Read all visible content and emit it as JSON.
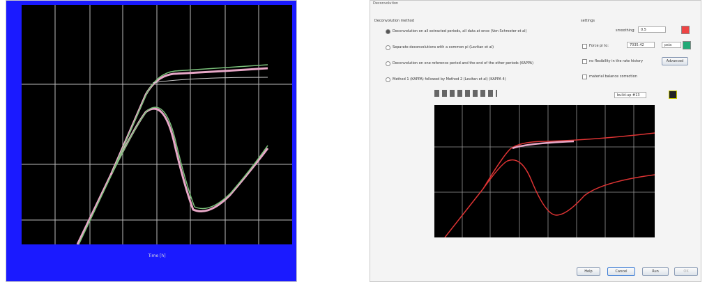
{
  "left_plot": {
    "x_axis_label": "Time [h]"
  },
  "dialog": {
    "title": "Deconvolution",
    "method_heading": "Deconvolution method",
    "methods": [
      "Deconvolution on all extracted periods, all data at once (Von Schroeter et al)",
      "Separate deconvolutions with a common pi (Levitan et al)",
      "Deconvolution on one reference period and the end of the other periods (KAPPA)",
      "Method 1 (KAPPA) followed by Method 2 (Levitan et al) (KAPPA 4)"
    ],
    "settings_heading": "settings",
    "smoothing_label": "smoothing:",
    "smoothing_value": "0.5",
    "force_pi_label": "Force pi to:",
    "force_pi_value": "7035.42",
    "force_pi_unit": "psia",
    "no_flexibility_label": "no flexibility in the rate history",
    "advanced_button": "Advanced",
    "material_balance_label": "material balance correction",
    "period_select": "build-up #13",
    "buttons": [
      "Help",
      "Cancel",
      "Run",
      "OK"
    ]
  }
}
